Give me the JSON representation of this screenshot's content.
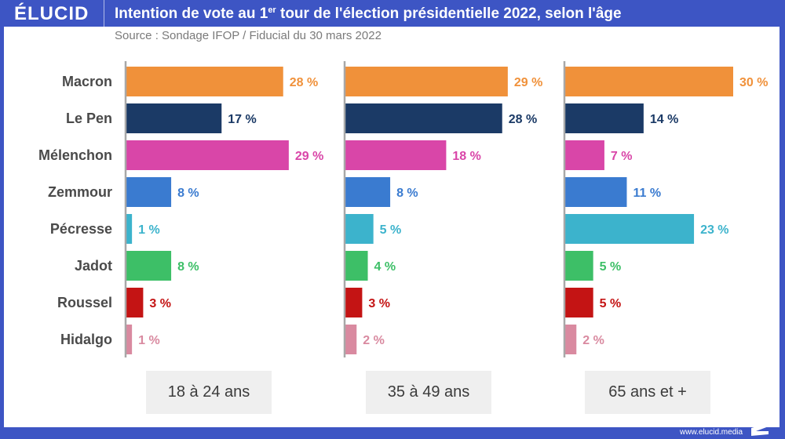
{
  "header": {
    "logo": "ÉLUCID",
    "title_before_sup": "Intention de vote au 1",
    "title_sup": "er",
    "title_after_sup": " tour de l'élection présidentielle 2022, selon l'âge",
    "subtitle": "Source : Sondage IFOP / Fiducial du 30 mars 2022"
  },
  "footer": {
    "url": "www.elucid.media"
  },
  "chart_data": {
    "type": "bar",
    "orientation": "horizontal",
    "title": "Intention de vote au 1er tour de l'élection présidentielle 2022, selon l'âge",
    "subtitle": "Source : Sondage IFOP / Fiducial du 30 mars 2022",
    "xlabel": "",
    "ylabel": "",
    "unit": "%",
    "grid": false,
    "xlim": [
      0,
      30
    ],
    "categories": [
      "Macron",
      "Le Pen",
      "Mélenchon",
      "Zemmour",
      "Pécresse",
      "Jadot",
      "Roussel",
      "Hidalgo"
    ],
    "colors": [
      "#f0913a",
      "#1b3a66",
      "#d946a8",
      "#3a7bd0",
      "#3cb3cc",
      "#3dbf67",
      "#c41414",
      "#d98aa0"
    ],
    "series": [
      {
        "name": "18 à 24 ans",
        "values": [
          28,
          17,
          29,
          8,
          1,
          8,
          3,
          1
        ]
      },
      {
        "name": "35 à 49 ans",
        "values": [
          29,
          28,
          18,
          8,
          5,
          4,
          3,
          2
        ]
      },
      {
        "name": "65 ans et +",
        "values": [
          30,
          14,
          7,
          11,
          23,
          5,
          5,
          2
        ]
      }
    ],
    "value_label_suffix": " %"
  }
}
